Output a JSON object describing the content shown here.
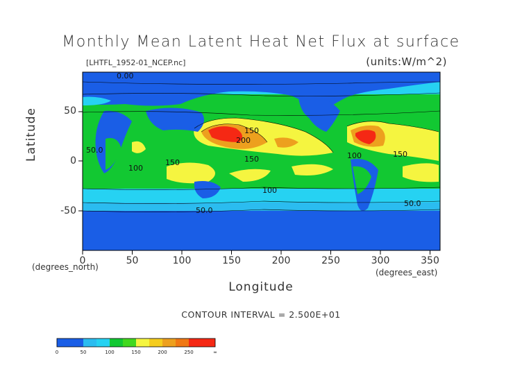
{
  "title": "Monthly Mean Latent Heat Net Flux at surface",
  "file_label": "[LHTFL_1952-01_NCEP.nc]",
  "units": "(units:W/m^2)",
  "y_axis": {
    "label": "Latitude",
    "units": "(degrees_north)",
    "ticks": [
      "50",
      "0",
      "-50"
    ]
  },
  "x_axis": {
    "label": "Longitude",
    "units": "(degrees_east)",
    "ticks": [
      "0",
      "50",
      "100",
      "150",
      "200",
      "250",
      "300",
      "350"
    ]
  },
  "contour_interval": "CONTOUR INTERVAL = 2.500E+01",
  "colorbar": {
    "labels": [
      "0",
      "50",
      "100",
      "150",
      "200",
      "250",
      "∞"
    ],
    "colors": [
      "#1a5ee6",
      "#2bbcf0",
      "#26d2f2",
      "#12c832",
      "#41d81e",
      "#f5f540",
      "#f5cd1e",
      "#eda01e",
      "#f07814",
      "#f52814"
    ]
  },
  "contour_labels": [
    "0.00",
    "150",
    "200",
    "150",
    "50.0",
    "100",
    "150",
    "100",
    "150",
    "100",
    "50.0",
    "50.0"
  ],
  "chart_data": {
    "type": "heatmap",
    "title": "Monthly Mean Latent Heat Net Flux at surface",
    "xlabel": "Longitude",
    "ylabel": "Latitude",
    "xlim": [
      0,
      360
    ],
    "ylim": [
      -90,
      90
    ],
    "levels": [
      0,
      25,
      50,
      75,
      100,
      125,
      150,
      175,
      200,
      225,
      250,
      275
    ],
    "regions": [
      {
        "lon": [
          0,
          360
        ],
        "lat": [
          -90,
          -60
        ],
        "value": 10
      },
      {
        "lon": [
          0,
          360
        ],
        "lat": [
          -60,
          -45
        ],
        "value": 40
      },
      {
        "lon": [
          0,
          360
        ],
        "lat": [
          -45,
          -30
        ],
        "value": 75
      },
      {
        "lon": [
          0,
          360
        ],
        "lat": [
          -30,
          30
        ],
        "value": 110
      },
      {
        "lon": [
          120,
          200
        ],
        "lat": [
          10,
          40
        ],
        "value": 200
      },
      {
        "lon": [
          270,
          300
        ],
        "lat": [
          15,
          35
        ],
        "value": 210
      },
      {
        "lon": [
          0,
          360
        ],
        "lat": [
          60,
          90
        ],
        "value": 10
      }
    ]
  }
}
